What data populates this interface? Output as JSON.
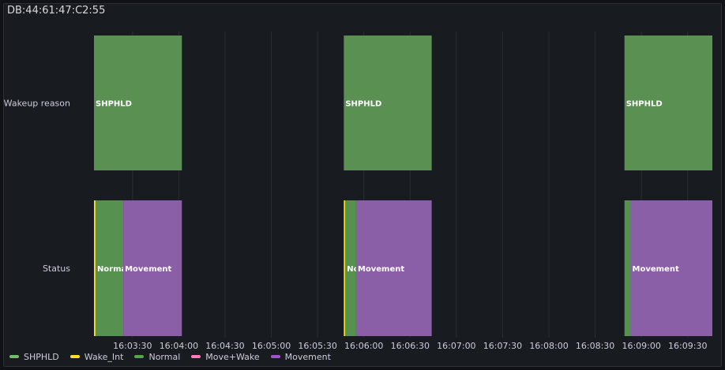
{
  "panel": {
    "title": "DB:44:61:47:C2:55"
  },
  "chart_data": {
    "type": "state-timeline",
    "title": "DB:44:61:47:C2:55",
    "x_range": [
      "16:03:05",
      "16:09:46"
    ],
    "x_ticks": [
      "16:03:30",
      "16:04:00",
      "16:04:30",
      "16:05:00",
      "16:05:30",
      "16:06:00",
      "16:06:30",
      "16:07:00",
      "16:07:30",
      "16:08:00",
      "16:08:30",
      "16:09:00",
      "16:09:30"
    ],
    "rows": [
      {
        "name": "Wakeup reason",
        "segments": [
          {
            "start": "16:03:05",
            "end": "16:04:02",
            "value": "SHPHLD",
            "label": "SHPHLD"
          },
          {
            "start": "16:05:47",
            "end": "16:06:44",
            "value": "SHPHLD",
            "label": "SHPHLD"
          },
          {
            "start": "16:08:49",
            "end": "16:09:46",
            "value": "SHPHLD",
            "label": "SHPHLD"
          }
        ]
      },
      {
        "name": "Status",
        "segments": [
          {
            "start": "16:03:05",
            "end": "16:03:06",
            "value": "Wake_Int",
            "label": ""
          },
          {
            "start": "16:03:06",
            "end": "16:03:24",
            "value": "Normal",
            "label": "Norma"
          },
          {
            "start": "16:03:24",
            "end": "16:04:02",
            "value": "Movement",
            "label": "Movement"
          },
          {
            "start": "16:05:47",
            "end": "16:05:48",
            "value": "Wake_Int",
            "label": ""
          },
          {
            "start": "16:05:48",
            "end": "16:05:55",
            "value": "Normal",
            "label": "No"
          },
          {
            "start": "16:05:55",
            "end": "16:06:44",
            "value": "Movement",
            "label": "Movement"
          },
          {
            "start": "16:08:49",
            "end": "16:08:53",
            "value": "Normal",
            "label": ""
          },
          {
            "start": "16:08:53",
            "end": "16:09:46",
            "value": "Movement",
            "label": "Movement"
          }
        ]
      }
    ],
    "legend": [
      {
        "name": "SHPHLD",
        "color": "#73bf69"
      },
      {
        "name": "Wake_Int",
        "color": "#fade2a"
      },
      {
        "name": "Normal",
        "color": "#56a64b"
      },
      {
        "name": "Move+Wake",
        "color": "#ff78b8"
      },
      {
        "name": "Movement",
        "color": "#a352cc"
      }
    ],
    "fills": {
      "SHPHLD": "#5a9153",
      "Wake_Int": "#fade2a",
      "Normal": "#56914f",
      "Move+Wake": "#ff78b8",
      "Movement": "#8a5fa8"
    },
    "legend_position": "bottom-left",
    "grid": true
  }
}
